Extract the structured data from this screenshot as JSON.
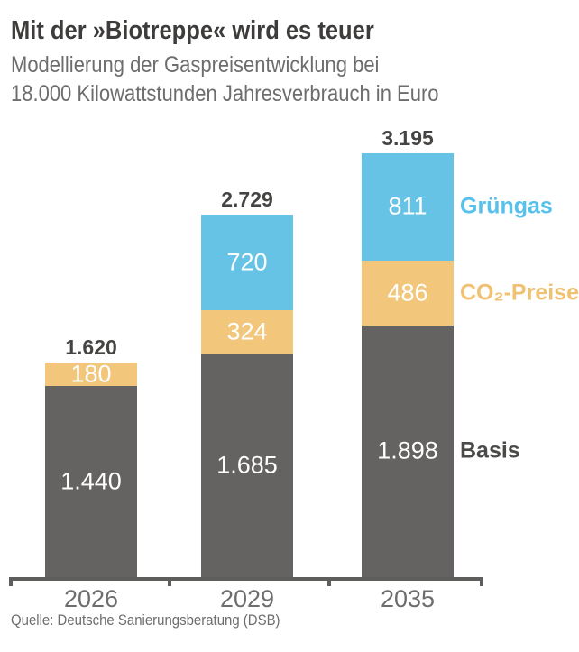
{
  "header": {
    "title": "Mit der »Biotreppe« wird es teuer",
    "subtitle_lines": [
      "Modellierung der Gaspreisentwicklung bei",
      "18.000 Kilowattstunden Jahresverbrauch in Euro"
    ]
  },
  "source": "Quelle: Deutsche Sanierungsberatung (DSB)",
  "colors": {
    "basis": "#646362",
    "co2": "#f2c77c",
    "gruengas": "#66c3e6",
    "axis": "#5e5e5d",
    "value_label": "#ffffff",
    "total_label": "#454443",
    "year_label": "#6e6d6d",
    "legend_basis": "#4a4a49",
    "legend_co2": "#f0c173",
    "legend_gruengas": "#57c1ec"
  },
  "chart_data": {
    "type": "bar",
    "stacked": true,
    "title": "Mit der »Biotreppe« wird es teuer",
    "subtitle": "Modellierung der Gaspreisentwicklung bei 18.000 Kilowattstunden Jahresverbrauch in Euro",
    "unit": "Euro",
    "categories": [
      "2026",
      "2029",
      "2035"
    ],
    "series": [
      {
        "name": "Basis",
        "color_key": "basis",
        "values": [
          1440,
          1685,
          1898
        ],
        "display": [
          "1.440",
          "1.685",
          "1.898"
        ]
      },
      {
        "name": "CO₂-Preise",
        "color_key": "co2",
        "values": [
          180,
          324,
          486
        ],
        "display": [
          "180",
          "324",
          "486"
        ]
      },
      {
        "name": "Grüngas",
        "color_key": "gruengas",
        "values": [
          0,
          720,
          811
        ],
        "display": [
          "",
          "720",
          "811"
        ]
      }
    ],
    "totals": [
      1620,
      2729,
      3195
    ],
    "totals_display": [
      "1.620",
      "2.729",
      "3.195"
    ],
    "ylim": [
      0,
      3400
    ],
    "grid": false,
    "legend_position": "right-of-last-bar",
    "source": "Quelle: Deutsche Sanierungsberatung (DSB)"
  }
}
